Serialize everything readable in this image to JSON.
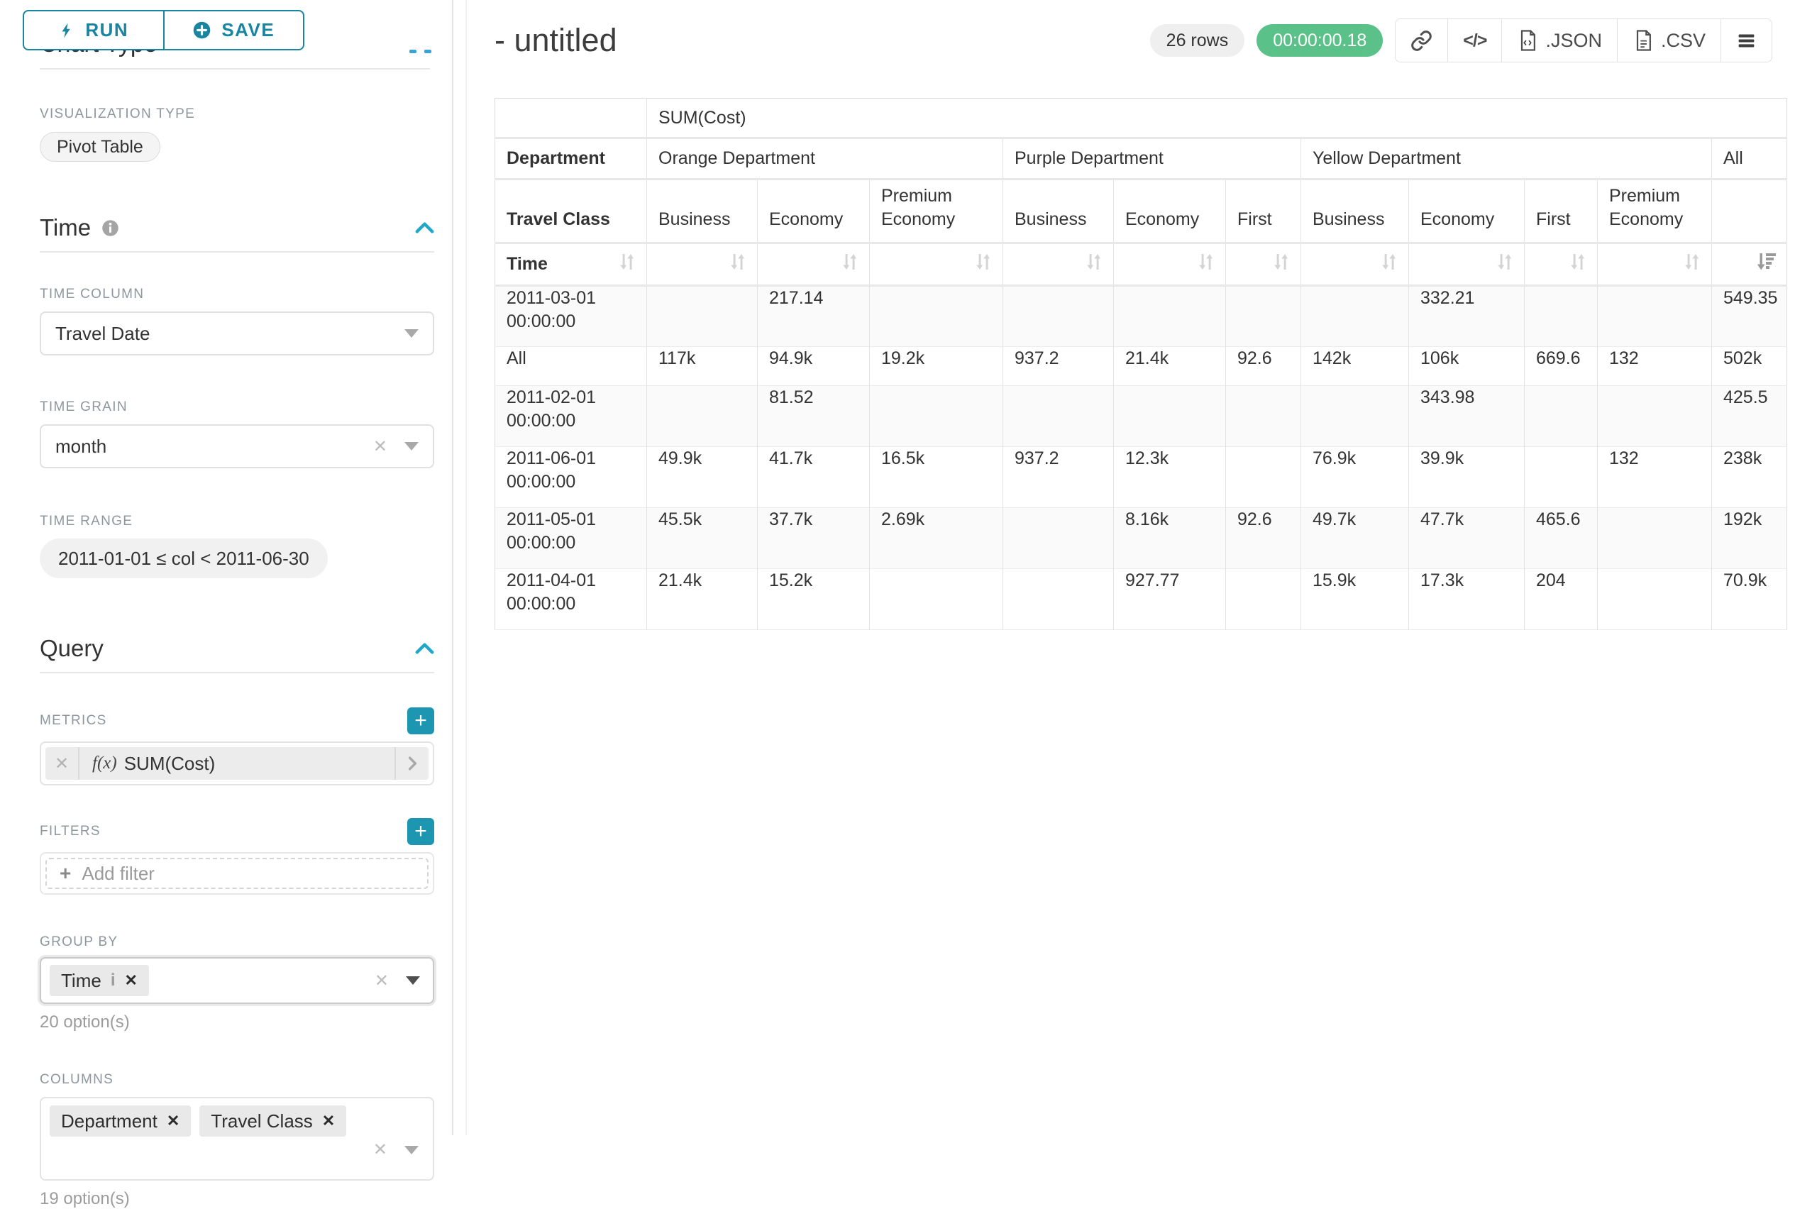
{
  "colors": {
    "accent": "#1985a0",
    "chevron": "#20a7c9",
    "timer_green": "#5ac189"
  },
  "sidebar": {
    "run_label": "RUN",
    "save_label": "SAVE",
    "chart_type_heading": "Chart Type",
    "visualization": {
      "label": "VISUALIZATION TYPE",
      "value": "Pivot Table"
    },
    "time": {
      "title": "Time",
      "time_column": {
        "label": "TIME COLUMN",
        "value": "Travel Date"
      },
      "time_grain": {
        "label": "TIME GRAIN",
        "value": "month"
      },
      "time_range": {
        "label": "TIME RANGE",
        "value": "2011-01-01 ≤ col < 2011-06-30"
      }
    },
    "query": {
      "title": "Query",
      "metrics": {
        "label": "METRICS",
        "fx": "f(x)",
        "value": "SUM(Cost)"
      },
      "filters": {
        "label": "FILTERS",
        "placeholder": "Add filter"
      },
      "group_by": {
        "label": "GROUP BY",
        "tags": [
          "Time"
        ],
        "hint": "20 option(s)"
      },
      "columns": {
        "label": "COLUMNS",
        "tags": [
          "Department",
          "Travel Class"
        ],
        "hint": "19 option(s)"
      }
    }
  },
  "header": {
    "title": "- untitled",
    "row_count": "26 rows",
    "timer": "00:00:00.18",
    "export_json": ".JSON",
    "export_csv": ".CSV",
    "toolbar_icons": [
      "link-icon",
      "code-icon",
      "file-json-icon",
      "file-csv-icon",
      "menu-icon"
    ]
  },
  "pivot": {
    "metric_header": "SUM(Cost)",
    "column_axis_label": "Department",
    "column_axis_label2": "Travel Class",
    "row_axis_label": "Time",
    "column_groups": [
      {
        "label": "Orange Department",
        "children": [
          "Business",
          "Economy",
          "Premium Economy"
        ]
      },
      {
        "label": "Purple Department",
        "children": [
          "Business",
          "Economy",
          "First"
        ]
      },
      {
        "label": "Yellow Department",
        "children": [
          "Business",
          "Economy",
          "First",
          "Premium Economy"
        ]
      },
      {
        "label": "All",
        "children": [
          ""
        ]
      }
    ],
    "rows": [
      {
        "label": "2011-03-01 00:00:00",
        "values": [
          "",
          "217.14",
          "",
          "",
          "",
          "",
          "",
          "332.21",
          "",
          "",
          "549.35"
        ]
      },
      {
        "label": "All",
        "values": [
          "117k",
          "94.9k",
          "19.2k",
          "937.2",
          "21.4k",
          "92.6",
          "142k",
          "106k",
          "669.6",
          "132",
          "502k"
        ]
      },
      {
        "label": "2011-02-01 00:00:00",
        "values": [
          "",
          "81.52",
          "",
          "",
          "",
          "",
          "",
          "343.98",
          "",
          "",
          "425.5"
        ]
      },
      {
        "label": "2011-06-01 00:00:00",
        "values": [
          "49.9k",
          "41.7k",
          "16.5k",
          "937.2",
          "12.3k",
          "",
          "76.9k",
          "39.9k",
          "",
          "132",
          "238k"
        ]
      },
      {
        "label": "2011-05-01 00:00:00",
        "values": [
          "45.5k",
          "37.7k",
          "2.69k",
          "",
          "8.16k",
          "92.6",
          "49.7k",
          "47.7k",
          "465.6",
          "",
          "192k"
        ]
      },
      {
        "label": "2011-04-01 00:00:00",
        "values": [
          "21.4k",
          "15.2k",
          "",
          "",
          "927.77",
          "",
          "15.9k",
          "17.3k",
          "204",
          "",
          "70.9k"
        ]
      }
    ]
  }
}
